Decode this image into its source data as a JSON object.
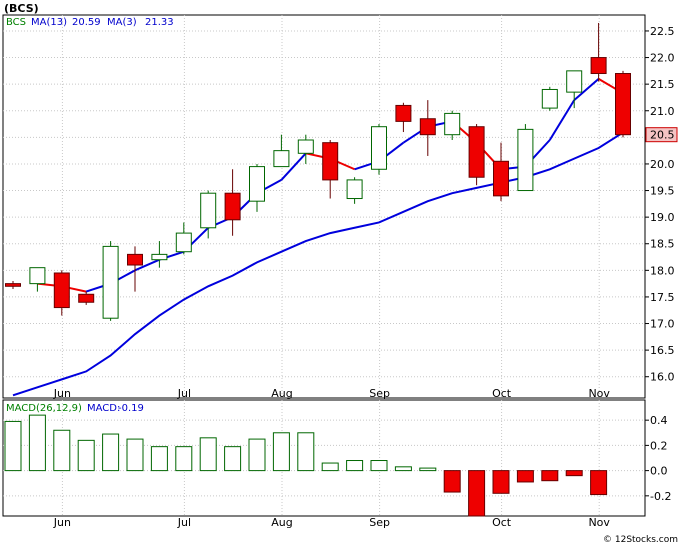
{
  "title": "(BCS)",
  "footer": "© 12Stocks.com",
  "chart_data": [
    {
      "type": "candlestick",
      "legend": {
        "ticker": "BCS",
        "ma13": "MA(13)",
        "ma13_value": "20.59",
        "ma3": "MA(3)",
        "ma3_value": "21.33"
      },
      "price_tag": "20.5",
      "ylim": [
        15.6,
        22.8
      ],
      "yticks": [
        16.0,
        16.5,
        17.0,
        17.5,
        18.0,
        18.5,
        19.0,
        19.5,
        20.0,
        20.5,
        21.0,
        21.5,
        22.0,
        22.5
      ],
      "ytick_labels": [
        "16.0",
        "16.5",
        "17.0",
        "17.5",
        "18.0",
        "18.5",
        "19.0",
        "19.5",
        "20.0",
        "20.5",
        "21.0",
        "21.5",
        "22.0",
        "22.5"
      ],
      "xlabels": [
        {
          "label": "Jun",
          "index": 1
        },
        {
          "label": "Jul",
          "index": 6
        },
        {
          "label": "Aug",
          "index": 10
        },
        {
          "label": "Sep",
          "index": 14
        },
        {
          "label": "Oct",
          "index": 19
        },
        {
          "label": "Nov",
          "index": 23
        }
      ],
      "candles": [
        {
          "o": 17.75,
          "h": 17.8,
          "l": 17.65,
          "c": 17.7
        },
        {
          "o": 17.75,
          "h": 18.05,
          "l": 17.6,
          "c": 18.05
        },
        {
          "o": 17.95,
          "h": 18.0,
          "l": 17.15,
          "c": 17.3
        },
        {
          "o": 17.55,
          "h": 17.6,
          "l": 17.35,
          "c": 17.4
        },
        {
          "o": 17.1,
          "h": 18.55,
          "l": 17.05,
          "c": 18.45
        },
        {
          "o": 18.3,
          "h": 18.45,
          "l": 17.6,
          "c": 18.1
        },
        {
          "o": 18.2,
          "h": 18.55,
          "l": 18.05,
          "c": 18.3
        },
        {
          "o": 18.35,
          "h": 18.9,
          "l": 18.3,
          "c": 18.7
        },
        {
          "o": 18.8,
          "h": 19.5,
          "l": 18.6,
          "c": 19.45
        },
        {
          "o": 19.45,
          "h": 19.9,
          "l": 18.65,
          "c": 18.95
        },
        {
          "o": 19.3,
          "h": 20.0,
          "l": 19.1,
          "c": 19.95
        },
        {
          "o": 19.95,
          "h": 20.55,
          "l": 19.95,
          "c": 20.25
        },
        {
          "o": 20.2,
          "h": 20.55,
          "l": 20.0,
          "c": 20.45
        },
        {
          "o": 20.4,
          "h": 20.45,
          "l": 19.35,
          "c": 19.7
        },
        {
          "o": 19.35,
          "h": 19.75,
          "l": 19.25,
          "c": 19.7
        },
        {
          "o": 19.9,
          "h": 20.75,
          "l": 19.8,
          "c": 20.7
        },
        {
          "o": 21.1,
          "h": 21.15,
          "l": 20.6,
          "c": 20.8
        },
        {
          "o": 20.85,
          "h": 21.2,
          "l": 20.15,
          "c": 20.55
        },
        {
          "o": 20.55,
          "h": 21.0,
          "l": 20.45,
          "c": 20.95
        },
        {
          "o": 20.7,
          "h": 20.75,
          "l": 19.6,
          "c": 19.75
        },
        {
          "o": 20.05,
          "h": 20.4,
          "l": 19.3,
          "c": 19.4
        },
        {
          "o": 19.5,
          "h": 20.75,
          "l": 19.5,
          "c": 20.65
        },
        {
          "o": 21.05,
          "h": 21.45,
          "l": 21.0,
          "c": 21.4
        },
        {
          "o": 21.35,
          "h": 21.75,
          "l": 21.05,
          "c": 21.75
        },
        {
          "o": 22.0,
          "h": 22.65,
          "l": 21.55,
          "c": 21.7
        },
        {
          "o": 21.7,
          "h": 21.75,
          "l": 20.5,
          "c": 20.55
        }
      ],
      "ma3": [
        null,
        17.75,
        17.7,
        17.6,
        17.75,
        18.0,
        18.2,
        18.35,
        18.8,
        19.0,
        19.45,
        19.7,
        20.2,
        20.1,
        19.9,
        20.05,
        20.4,
        20.7,
        20.8,
        20.4,
        19.9,
        19.95,
        20.45,
        21.2,
        21.6,
        21.33
      ],
      "ma13": [
        15.65,
        15.8,
        15.95,
        16.1,
        16.4,
        16.8,
        17.15,
        17.45,
        17.7,
        17.9,
        18.15,
        18.35,
        18.55,
        18.7,
        18.8,
        18.9,
        19.1,
        19.3,
        19.45,
        19.55,
        19.65,
        19.75,
        19.9,
        20.1,
        20.3,
        20.59
      ]
    },
    {
      "type": "bar",
      "name": "MACD(26,12,9)",
      "legend": {
        "label": "MACD(26,12,9)",
        "macd_label": "MACD:",
        "macd_value": "-0.19"
      },
      "ylim": [
        -0.36,
        0.56
      ],
      "yticks": [
        -0.2,
        0.0,
        0.2,
        0.4
      ],
      "ytick_labels": [
        "-0.2",
        "0.0",
        "0.2",
        "0.4"
      ],
      "values": [
        0.39,
        0.44,
        0.32,
        0.24,
        0.29,
        0.25,
        0.19,
        0.19,
        0.26,
        0.19,
        0.25,
        0.3,
        0.3,
        0.06,
        0.08,
        0.08,
        0.03,
        0.02,
        -0.17,
        -0.36,
        -0.18,
        -0.09,
        -0.08,
        -0.04,
        -0.19
      ]
    }
  ]
}
